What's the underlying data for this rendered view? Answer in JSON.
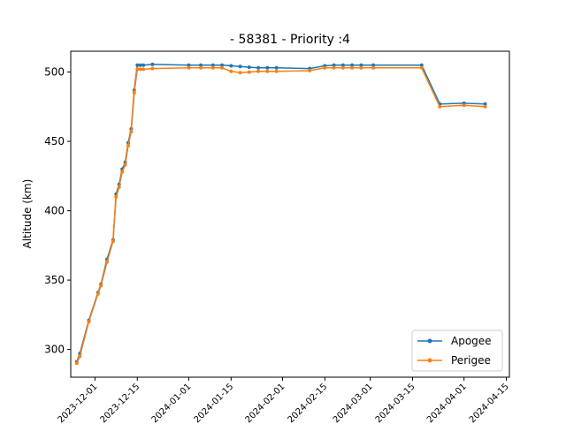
{
  "chart_data": {
    "type": "line",
    "title": "- 58381 - Priority :4",
    "xlabel": "",
    "ylabel": "Altitude (km)",
    "xlim": [
      "2023-11-23",
      "2024-04-16"
    ],
    "ylim": [
      280,
      515
    ],
    "x_ticks": [
      "2023-12-01",
      "2023-12-15",
      "2024-01-01",
      "2024-01-15",
      "2024-02-01",
      "2024-02-15",
      "2024-03-01",
      "2024-03-15",
      "2024-04-01",
      "2024-04-15"
    ],
    "y_ticks": [
      300,
      350,
      400,
      450,
      500
    ],
    "grid": false,
    "legend": "lower-right",
    "x": [
      "2023-11-25",
      "2023-11-26",
      "2023-11-29",
      "2023-12-02",
      "2023-12-03",
      "2023-12-05",
      "2023-12-07",
      "2023-12-08",
      "2023-12-09",
      "2023-12-10",
      "2023-12-11",
      "2023-12-12",
      "2023-12-13",
      "2023-12-14",
      "2023-12-15",
      "2023-12-16",
      "2023-12-17",
      "2023-12-20",
      "2024-01-01",
      "2024-01-05",
      "2024-01-09",
      "2024-01-12",
      "2024-01-15",
      "2024-01-18",
      "2024-01-21",
      "2024-01-24",
      "2024-01-27",
      "2024-01-30",
      "2024-02-10",
      "2024-02-15",
      "2024-02-18",
      "2024-02-21",
      "2024-02-24",
      "2024-02-27",
      "2024-03-02",
      "2024-03-18",
      "2024-03-24",
      "2024-04-01",
      "2024-04-08"
    ],
    "series": [
      {
        "name": "Apogee",
        "color": "#1f77b4",
        "values": [
          291,
          297,
          321,
          341,
          347,
          365,
          379,
          412,
          419,
          430,
          435,
          449,
          459,
          487,
          505,
          505,
          505,
          505.5,
          505,
          505,
          505,
          505,
          504.5,
          504,
          503.5,
          503,
          503,
          503,
          502.5,
          504.5,
          505,
          505,
          505,
          505,
          505,
          505,
          477,
          477.5,
          477
        ]
      },
      {
        "name": "Perigee",
        "color": "#ff7f0e",
        "values": [
          290,
          295,
          320,
          340,
          346,
          363,
          378,
          410,
          417,
          428,
          433,
          447,
          457,
          485,
          502,
          502,
          502,
          502.5,
          503,
          503,
          503,
          503,
          500.5,
          499.5,
          500,
          500.5,
          500.5,
          500.5,
          501,
          503,
          503,
          503,
          503,
          503,
          503,
          503,
          475,
          476,
          475
        ]
      }
    ]
  }
}
